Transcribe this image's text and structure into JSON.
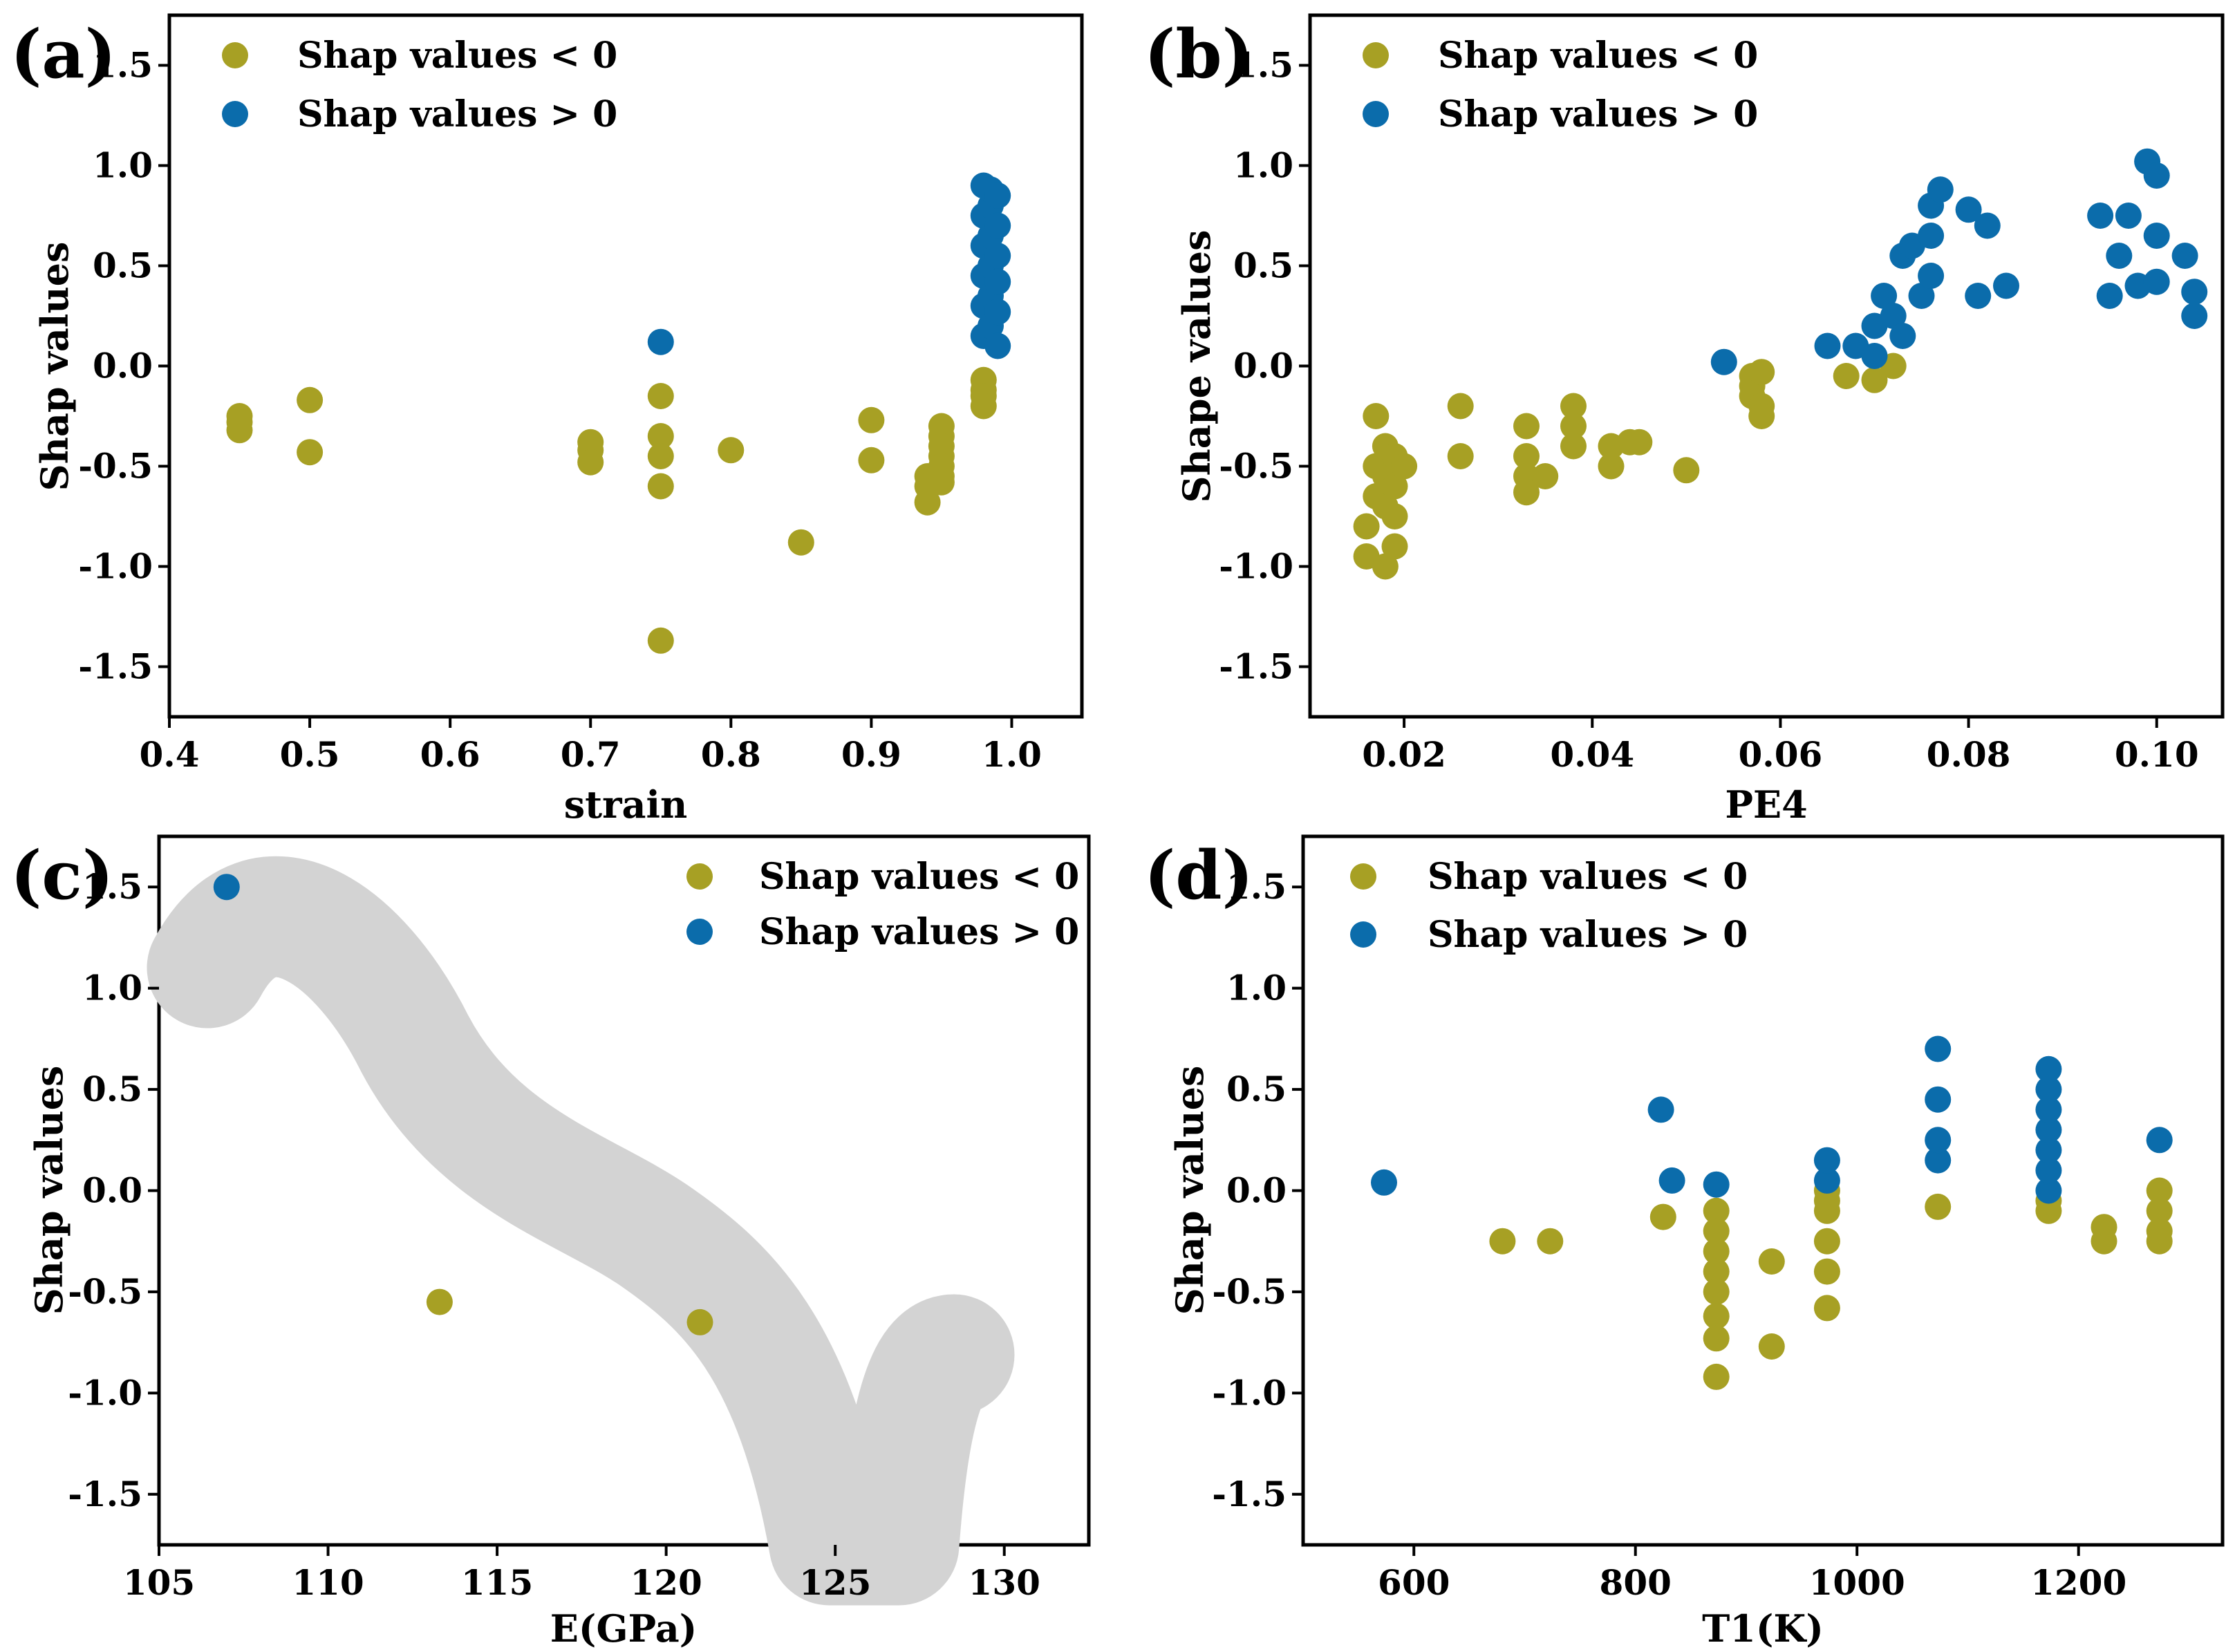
{
  "colors": {
    "negative": "#A7A024",
    "positive": "#0B6CAB",
    "smudge": "#D3D3D3",
    "axis": "#000000"
  },
  "chart_data": [
    {
      "type": "scatter",
      "panel_label": "(a)",
      "title": "",
      "xlabel": "strain",
      "ylabel": "Shap values",
      "xlim": [
        0.4,
        1.05
      ],
      "ylim": [
        -1.75,
        1.75
      ],
      "x_ticks": [
        "0.4",
        "0.5",
        "0.6",
        "0.7",
        "0.8",
        "0.9",
        "1.0"
      ],
      "y_ticks": [
        "-1.5",
        "-1.0",
        "-0.5",
        "0.0",
        "0.5",
        "1.0",
        "1.5"
      ],
      "legend": [
        "Shap values < 0",
        "Shap values > 0"
      ],
      "series": [
        {
          "name": "Shap values < 0",
          "color": "#A7A024",
          "points": [
            [
              0.45,
              -0.25
            ],
            [
              0.45,
              -0.28
            ],
            [
              0.45,
              -0.32
            ],
            [
              0.5,
              -0.17
            ],
            [
              0.5,
              -0.43
            ],
            [
              0.7,
              -0.38
            ],
            [
              0.7,
              -0.42
            ],
            [
              0.7,
              -0.48
            ],
            [
              0.75,
              -0.15
            ],
            [
              0.75,
              -0.35
            ],
            [
              0.75,
              -0.45
            ],
            [
              0.75,
              -0.6
            ],
            [
              0.75,
              -1.37
            ],
            [
              0.8,
              -0.42
            ],
            [
              0.85,
              -0.88
            ],
            [
              0.9,
              -0.27
            ],
            [
              0.9,
              -0.47
            ],
            [
              0.94,
              -0.55
            ],
            [
              0.94,
              -0.6
            ],
            [
              0.94,
              -0.68
            ],
            [
              0.95,
              -0.3
            ],
            [
              0.95,
              -0.35
            ],
            [
              0.95,
              -0.4
            ],
            [
              0.95,
              -0.45
            ],
            [
              0.95,
              -0.5
            ],
            [
              0.95,
              -0.55
            ],
            [
              0.95,
              -0.58
            ],
            [
              0.98,
              -0.07
            ],
            [
              0.98,
              -0.12
            ],
            [
              0.98,
              -0.15
            ],
            [
              0.98,
              -0.2
            ]
          ]
        },
        {
          "name": "Shap values > 0",
          "color": "#0B6CAB",
          "points": [
            [
              0.75,
              0.12
            ],
            [
              0.98,
              0.15
            ],
            [
              0.98,
              0.3
            ],
            [
              0.98,
              0.45
            ],
            [
              0.98,
              0.6
            ],
            [
              0.98,
              0.75
            ],
            [
              0.98,
              0.9
            ],
            [
              0.985,
              0.2
            ],
            [
              0.985,
              0.35
            ],
            [
              0.985,
              0.5
            ],
            [
              0.985,
              0.65
            ],
            [
              0.985,
              0.8
            ],
            [
              0.985,
              0.88
            ],
            [
              0.99,
              0.1
            ],
            [
              0.99,
              0.27
            ],
            [
              0.99,
              0.42
            ],
            [
              0.99,
              0.55
            ],
            [
              0.99,
              0.7
            ],
            [
              0.99,
              0.85
            ]
          ]
        }
      ]
    },
    {
      "type": "scatter",
      "panel_label": "(b)",
      "title": "",
      "xlabel": "PE4",
      "ylabel": "Shape values",
      "xlim": [
        0.01,
        0.107
      ],
      "ylim": [
        -1.75,
        1.75
      ],
      "x_ticks": [
        "0.02",
        "0.04",
        "0.06",
        "0.08",
        "0.10"
      ],
      "y_ticks": [
        "-1.5",
        "-1.0",
        "-0.5",
        "0.0",
        "0.5",
        "1.0",
        "1.5"
      ],
      "legend": [
        "Shap values < 0",
        "Shap values > 0"
      ],
      "series": [
        {
          "name": "Shap values < 0",
          "color": "#A7A024",
          "points": [
            [
              0.016,
              -0.95
            ],
            [
              0.016,
              -0.8
            ],
            [
              0.017,
              -0.65
            ],
            [
              0.017,
              -0.5
            ],
            [
              0.017,
              -0.25
            ],
            [
              0.018,
              -1.0
            ],
            [
              0.018,
              -0.7
            ],
            [
              0.018,
              -0.55
            ],
            [
              0.018,
              -0.4
            ],
            [
              0.019,
              -0.9
            ],
            [
              0.019,
              -0.75
            ],
            [
              0.019,
              -0.6
            ],
            [
              0.019,
              -0.45
            ],
            [
              0.02,
              -0.5
            ],
            [
              0.026,
              -0.2
            ],
            [
              0.026,
              -0.45
            ],
            [
              0.033,
              -0.3
            ],
            [
              0.033,
              -0.45
            ],
            [
              0.033,
              -0.55
            ],
            [
              0.033,
              -0.63
            ],
            [
              0.035,
              -0.55
            ],
            [
              0.038,
              -0.2
            ],
            [
              0.038,
              -0.3
            ],
            [
              0.038,
              -0.4
            ],
            [
              0.042,
              -0.4
            ],
            [
              0.042,
              -0.5
            ],
            [
              0.044,
              -0.38
            ],
            [
              0.045,
              -0.38
            ],
            [
              0.05,
              -0.52
            ],
            [
              0.057,
              -0.05
            ],
            [
              0.057,
              -0.1
            ],
            [
              0.057,
              -0.15
            ],
            [
              0.058,
              -0.2
            ],
            [
              0.058,
              -0.25
            ],
            [
              0.058,
              -0.03
            ],
            [
              0.067,
              -0.05
            ],
            [
              0.07,
              -0.07
            ],
            [
              0.072,
              0.0
            ]
          ]
        },
        {
          "name": "Shap values > 0",
          "color": "#0B6CAB",
          "points": [
            [
              0.054,
              0.02
            ],
            [
              0.065,
              0.1
            ],
            [
              0.068,
              0.1
            ],
            [
              0.07,
              0.05
            ],
            [
              0.07,
              0.2
            ],
            [
              0.071,
              0.35
            ],
            [
              0.072,
              0.25
            ],
            [
              0.073,
              0.15
            ],
            [
              0.073,
              0.55
            ],
            [
              0.074,
              0.6
            ],
            [
              0.075,
              0.35
            ],
            [
              0.076,
              0.45
            ],
            [
              0.076,
              0.65
            ],
            [
              0.076,
              0.8
            ],
            [
              0.077,
              0.88
            ],
            [
              0.08,
              0.78
            ],
            [
              0.081,
              0.35
            ],
            [
              0.082,
              0.7
            ],
            [
              0.084,
              0.4
            ],
            [
              0.094,
              0.75
            ],
            [
              0.095,
              0.35
            ],
            [
              0.096,
              0.55
            ],
            [
              0.097,
              0.75
            ],
            [
              0.098,
              0.4
            ],
            [
              0.099,
              1.02
            ],
            [
              0.1,
              0.95
            ],
            [
              0.1,
              0.65
            ],
            [
              0.1,
              0.42
            ],
            [
              0.103,
              0.55
            ],
            [
              0.104,
              0.37
            ],
            [
              0.104,
              0.25
            ]
          ]
        }
      ]
    },
    {
      "type": "scatter",
      "panel_label": "(c)",
      "title": "",
      "xlabel": "E(GPa)",
      "ylabel": "Shap values",
      "xlim": [
        105,
        132.5
      ],
      "ylim": [
        -1.75,
        1.75
      ],
      "x_ticks": [
        "105",
        "110",
        "115",
        "120",
        "125",
        "130"
      ],
      "y_ticks": [
        "-1.5",
        "-1.0",
        "-0.5",
        "0.0",
        "0.5",
        "1.0",
        "1.5"
      ],
      "legend": [
        "Shap values < 0",
        "Shap values > 0"
      ],
      "series": [
        {
          "name": "Shap values < 0",
          "color": "#A7A024",
          "points": [
            [
              113.3,
              -0.55
            ],
            [
              121,
              -0.65
            ]
          ]
        },
        {
          "name": "Shap values > 0",
          "color": "#0B6CAB",
          "points": [
            [
              107,
              1.5
            ]
          ]
        }
      ]
    },
    {
      "type": "scatter",
      "panel_label": "(d)",
      "title": "",
      "xlabel": "T1(K)",
      "ylabel": "Shap values",
      "xlim": [
        500,
        1330
      ],
      "ylim": [
        -1.75,
        1.75
      ],
      "x_ticks": [
        "600",
        "800",
        "1000",
        "1200"
      ],
      "y_ticks": [
        "-1.5",
        "-1.0",
        "-0.5",
        "0.0",
        "0.5",
        "1.0",
        "1.5"
      ],
      "legend": [
        "Shap values < 0",
        "Shap values > 0"
      ],
      "series": [
        {
          "name": "Shap values < 0",
          "color": "#A7A024",
          "points": [
            [
              680,
              -0.25
            ],
            [
              723,
              -0.25
            ],
            [
              825,
              -0.13
            ],
            [
              873,
              -0.1
            ],
            [
              873,
              -0.2
            ],
            [
              873,
              -0.3
            ],
            [
              873,
              -0.4
            ],
            [
              873,
              -0.5
            ],
            [
              873,
              -0.62
            ],
            [
              873,
              -0.73
            ],
            [
              873,
              -0.92
            ],
            [
              923,
              -0.35
            ],
            [
              923,
              -0.77
            ],
            [
              973,
              0.0
            ],
            [
              973,
              -0.05
            ],
            [
              973,
              -0.1
            ],
            [
              973,
              -0.25
            ],
            [
              973,
              -0.4
            ],
            [
              973,
              -0.58
            ],
            [
              1073,
              -0.08
            ],
            [
              1173,
              -0.05
            ],
            [
              1173,
              -0.1
            ],
            [
              1223,
              -0.18
            ],
            [
              1223,
              -0.25
            ],
            [
              1273,
              0.0
            ],
            [
              1273,
              -0.1
            ],
            [
              1273,
              -0.2
            ],
            [
              1273,
              -0.25
            ]
          ]
        },
        {
          "name": "Shap values > 0",
          "color": "#0B6CAB",
          "points": [
            [
              573,
              0.04
            ],
            [
              823,
              0.4
            ],
            [
              833,
              0.05
            ],
            [
              873,
              0.03
            ],
            [
              973,
              0.05
            ],
            [
              973,
              0.15
            ],
            [
              1073,
              0.15
            ],
            [
              1073,
              0.25
            ],
            [
              1073,
              0.45
            ],
            [
              1073,
              0.7
            ],
            [
              1173,
              0.0
            ],
            [
              1173,
              0.1
            ],
            [
              1173,
              0.2
            ],
            [
              1173,
              0.3
            ],
            [
              1173,
              0.4
            ],
            [
              1173,
              0.5
            ],
            [
              1173,
              0.6
            ],
            [
              1273,
              0.25
            ]
          ]
        }
      ]
    }
  ]
}
